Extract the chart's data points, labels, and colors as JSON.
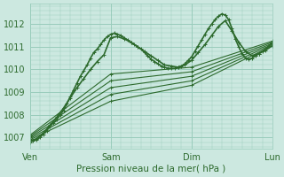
{
  "title": "",
  "xlabel": "Pression niveau de la mer( hPa )",
  "ylabel": "",
  "bg_color": "#cce8e0",
  "grid_color": "#99ccbb",
  "line_color": "#2d6a2d",
  "marker_color": "#2d6a2d",
  "ylim": [
    1006.5,
    1012.9
  ],
  "yticks": [
    1007,
    1008,
    1009,
    1010,
    1011,
    1012
  ],
  "xlim": [
    0,
    72
  ],
  "xtick_positions": [
    0,
    24,
    48,
    72
  ],
  "xtick_labels": [
    "Ven",
    "Sam",
    "Dim",
    "Lun"
  ],
  "font_color": "#2d6a2d",
  "series": [
    {
      "x": [
        0,
        1,
        2,
        3,
        4,
        5,
        6,
        7,
        8,
        9,
        10,
        11,
        12,
        13,
        14,
        15,
        16,
        17,
        18,
        19,
        20,
        21,
        22,
        23,
        24,
        25,
        26,
        27,
        28,
        29,
        30,
        31,
        32,
        33,
        34,
        35,
        36,
        37,
        38,
        39,
        40,
        41,
        42,
        43,
        44,
        45,
        46,
        47,
        48,
        49,
        50,
        51,
        52,
        53,
        54,
        55,
        56,
        57,
        58,
        59,
        60,
        61,
        62,
        63,
        64,
        65,
        66,
        67,
        68,
        69,
        70,
        71,
        72
      ],
      "y": [
        1006.8,
        1006.85,
        1006.9,
        1007.0,
        1007.15,
        1007.3,
        1007.5,
        1007.65,
        1007.8,
        1008.0,
        1008.2,
        1008.5,
        1008.8,
        1009.1,
        1009.4,
        1009.7,
        1009.95,
        1010.2,
        1010.5,
        1010.75,
        1010.9,
        1011.1,
        1011.3,
        1011.45,
        1011.55,
        1011.6,
        1011.55,
        1011.5,
        1011.4,
        1011.3,
        1011.2,
        1011.1,
        1011.0,
        1010.9,
        1010.75,
        1010.6,
        1010.45,
        1010.35,
        1010.25,
        1010.15,
        1010.1,
        1010.05,
        1010.05,
        1010.05,
        1010.1,
        1010.15,
        1010.25,
        1010.4,
        1010.55,
        1010.8,
        1011.05,
        1011.3,
        1011.55,
        1011.8,
        1012.0,
        1012.2,
        1012.35,
        1012.45,
        1012.4,
        1012.2,
        1011.8,
        1011.35,
        1011.0,
        1010.7,
        1010.5,
        1010.45,
        1010.5,
        1010.6,
        1010.7,
        1010.8,
        1010.9,
        1011.05,
        1011.2
      ]
    },
    {
      "x": [
        0,
        2,
        4,
        6,
        8,
        10,
        12,
        14,
        16,
        18,
        20,
        22,
        24,
        26,
        28,
        30,
        32,
        34,
        36,
        38,
        40,
        42,
        44,
        46,
        48,
        50,
        52,
        54,
        56,
        58,
        60,
        62,
        64,
        66,
        68,
        70,
        72
      ],
      "y": [
        1006.85,
        1006.95,
        1007.2,
        1007.55,
        1007.9,
        1008.3,
        1008.75,
        1009.2,
        1009.6,
        1010.0,
        1010.35,
        1010.65,
        1011.4,
        1011.45,
        1011.35,
        1011.2,
        1011.0,
        1010.8,
        1010.6,
        1010.4,
        1010.2,
        1010.15,
        1010.1,
        1010.2,
        1010.4,
        1010.75,
        1011.1,
        1011.5,
        1011.9,
        1012.15,
        1011.7,
        1011.2,
        1010.8,
        1010.6,
        1010.7,
        1010.85,
        1011.05
      ]
    },
    {
      "x": [
        0,
        24,
        48,
        72
      ],
      "y": [
        1006.9,
        1008.6,
        1009.3,
        1011.05
      ]
    },
    {
      "x": [
        0,
        24,
        48,
        72
      ],
      "y": [
        1006.95,
        1008.9,
        1009.5,
        1011.1
      ]
    },
    {
      "x": [
        0,
        24,
        48,
        72
      ],
      "y": [
        1007.0,
        1009.2,
        1009.7,
        1011.15
      ]
    },
    {
      "x": [
        0,
        24,
        48,
        72
      ],
      "y": [
        1007.05,
        1009.5,
        1009.9,
        1011.2
      ]
    },
    {
      "x": [
        0,
        24,
        48,
        72
      ],
      "y": [
        1007.1,
        1009.8,
        1010.1,
        1011.25
      ]
    }
  ]
}
